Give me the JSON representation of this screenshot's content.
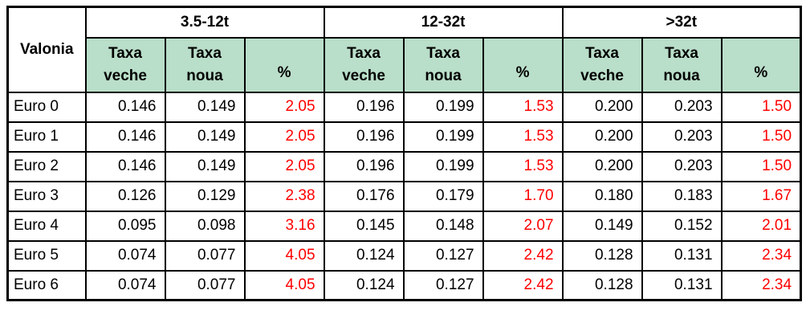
{
  "colors": {
    "header_green": "#b9dec9",
    "percent_red": "#ff0000",
    "border_black": "#000000",
    "text_black": "#000000"
  },
  "chart_data": {
    "type": "table",
    "title": "",
    "corner_header": "Valonia",
    "group_headers": [
      {
        "label": "3.5-12t",
        "colspan": 3
      },
      {
        "label": "12-32t",
        "colspan": 3
      },
      {
        "label": ">32t",
        "colspan": 3
      }
    ],
    "sub_headers": [
      "Taxa\nveche",
      "Taxa\nnoua",
      "%",
      "Taxa\nveche",
      "Taxa\nnoua",
      "%",
      "Taxa\nveche",
      "Taxa\nnoua",
      "%"
    ],
    "rows": [
      {
        "label": "Euro 0",
        "values": [
          "0.146",
          "0.149",
          "2.05",
          "0.196",
          "0.199",
          "1.53",
          "0.200",
          "0.203",
          "1.50"
        ]
      },
      {
        "label": "Euro 1",
        "values": [
          "0.146",
          "0.149",
          "2.05",
          "0.196",
          "0.199",
          "1.53",
          "0.200",
          "0.203",
          "1.50"
        ]
      },
      {
        "label": "Euro 2",
        "values": [
          "0.146",
          "0.149",
          "2.05",
          "0.196",
          "0.199",
          "1.53",
          "0.200",
          "0.203",
          "1.50"
        ]
      },
      {
        "label": "Euro 3",
        "values": [
          "0.126",
          "0.129",
          "2.38",
          "0.176",
          "0.179",
          "1.70",
          "0.180",
          "0.183",
          "1.67"
        ]
      },
      {
        "label": "Euro 4",
        "values": [
          "0.095",
          "0.098",
          "3.16",
          "0.145",
          "0.148",
          "2.07",
          "0.149",
          "0.152",
          "2.01"
        ]
      },
      {
        "label": "Euro 5",
        "values": [
          "0.074",
          "0.077",
          "4.05",
          "0.124",
          "0.127",
          "2.42",
          "0.128",
          "0.131",
          "2.34"
        ]
      },
      {
        "label": "Euro 6",
        "values": [
          "0.074",
          "0.077",
          "4.05",
          "0.124",
          "0.127",
          "2.42",
          "0.128",
          "0.131",
          "2.34"
        ]
      }
    ]
  }
}
